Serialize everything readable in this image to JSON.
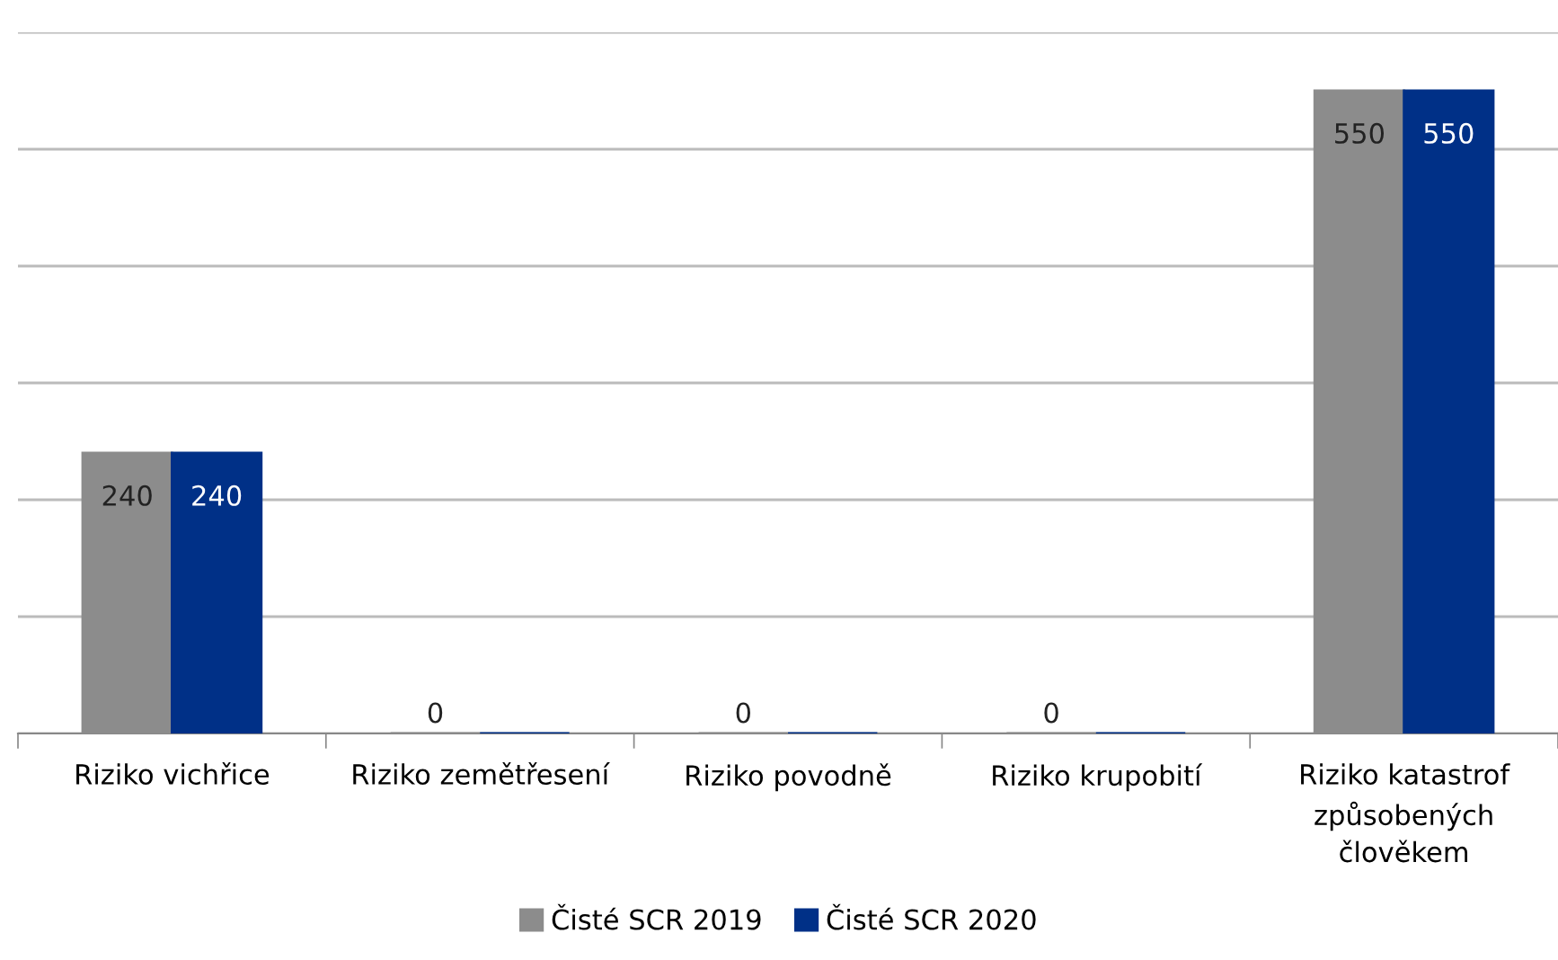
{
  "chart_data": {
    "type": "bar",
    "categories": [
      "Riziko vichřice",
      "Riziko zemětřesení",
      "Riziko povodně",
      "Riziko krupobití",
      "Riziko katastrof\nzpůsobených\nčlověkem"
    ],
    "series": [
      {
        "name": "Čisté SCR 2019",
        "color": "#8c8c8c",
        "values": [
          240,
          0,
          0,
          0,
          550
        ],
        "value_labels": [
          "240",
          "0",
          "0",
          "0",
          "550"
        ]
      },
      {
        "name": "Čisté SCR 2020",
        "color": "#003087",
        "values": [
          240,
          0,
          0,
          0,
          550
        ],
        "value_labels": [
          "240",
          null,
          null,
          null,
          "550"
        ]
      }
    ],
    "ylim": [
      0,
      600
    ],
    "yticks": [
      {
        "value": 0,
        "label": null
      },
      {
        "value": 100,
        "label": null
      },
      {
        "value": 200,
        "label": null
      },
      {
        "value": 300,
        "label": null
      },
      {
        "value": 400,
        "label": null
      },
      {
        "value": 500,
        "label": null
      },
      {
        "value": 600,
        "label": null
      }
    ],
    "tick_labels": "x",
    "grid": "y",
    "legend": "bottom"
  }
}
